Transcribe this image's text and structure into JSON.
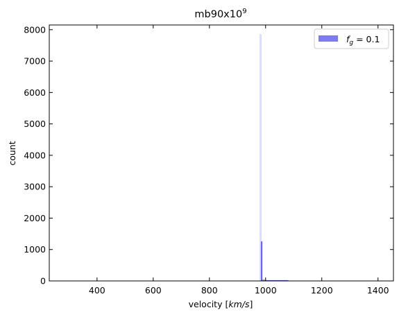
{
  "chart_data": {
    "type": "bar",
    "title": "mb90x10",
    "title_exponent": "9",
    "xlabel_prefix": "velocity [",
    "xlabel_math": "km/s",
    "xlabel_suffix": "]",
    "ylabel": "count",
    "xlim": [
      230,
      1455
    ],
    "ylim": [
      0,
      8150
    ],
    "xticks": [
      400,
      600,
      800,
      1000,
      1200,
      1400
    ],
    "yticks": [
      0,
      1000,
      2000,
      3000,
      4000,
      5000,
      6000,
      7000,
      8000
    ],
    "tick_direction": "in",
    "grid": false,
    "legend": {
      "position": "top-right",
      "entries": [
        {
          "symbol_main": "f",
          "symbol_sub": "g",
          "text_rest": " = 0.1",
          "color": "#7b7bf5"
        }
      ]
    },
    "series": [
      {
        "name": "f_g = 0.1",
        "color": "#0000ff",
        "alpha": 0.5,
        "bins": [
          {
            "x0": 980,
            "x1": 984,
            "count": 7850,
            "faint": true
          },
          {
            "x0": 984,
            "x1": 988,
            "count": 1250,
            "faint": false
          },
          {
            "x0": 988,
            "x1": 1000,
            "count": 30,
            "faint": false
          },
          {
            "x0": 1000,
            "x1": 1080,
            "count": 15,
            "faint": false
          }
        ]
      }
    ]
  }
}
